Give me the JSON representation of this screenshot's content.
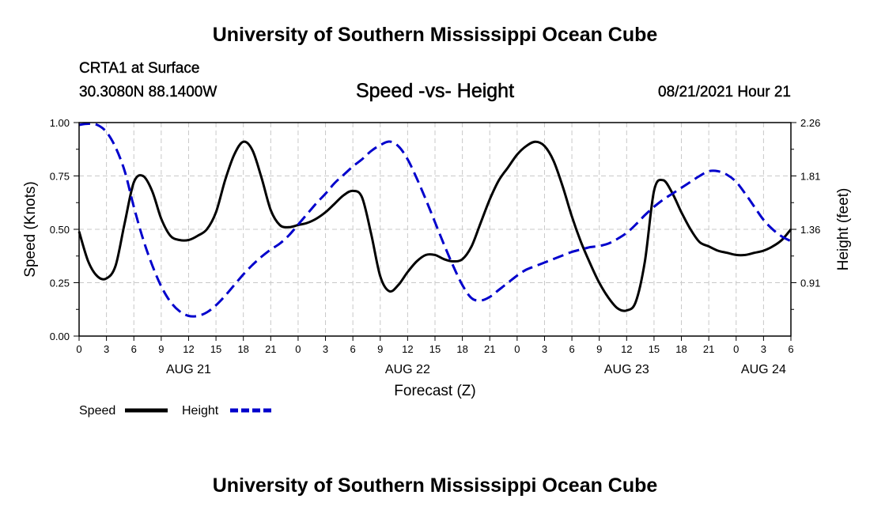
{
  "header": {
    "title": "University of Southern Mississippi Ocean Cube",
    "station": "CRTA1 at Surface",
    "coordinates": "30.3080N  88.1400W",
    "subtitle": "Speed -vs- Height",
    "datetime": "08/21/2021 Hour 21"
  },
  "footer": {
    "title": "University of Southern Mississippi Ocean Cube"
  },
  "colors": {
    "speed": "#000000",
    "height": "#0000cc",
    "grid": "#c8c8c8"
  },
  "chart_data": {
    "type": "line",
    "title": "Speed -vs- Height",
    "xlabel": "Forecast (Z)",
    "ylabel": "Speed (Knots)",
    "y2label": "Height (feet)",
    "x_unit": "hours from AUG 21 00Z",
    "xlim": [
      0,
      78
    ],
    "ylim": [
      0,
      1.0
    ],
    "y2lim": [
      0.46,
      2.26
    ],
    "x_ticks": [
      0,
      3,
      6,
      9,
      12,
      15,
      18,
      21,
      24,
      27,
      30,
      33,
      36,
      39,
      42,
      45,
      48,
      51,
      54,
      57,
      60,
      63,
      66,
      69,
      72,
      75,
      78
    ],
    "x_tick_labels": [
      "0",
      "3",
      "6",
      "9",
      "12",
      "15",
      "18",
      "21",
      "0",
      "3",
      "6",
      "9",
      "12",
      "15",
      "18",
      "21",
      "0",
      "3",
      "6",
      "9",
      "12",
      "15",
      "18",
      "21",
      "0",
      "3",
      "6"
    ],
    "y_ticks": [
      0.0,
      0.25,
      0.5,
      0.75,
      1.0
    ],
    "y_tick_labels": [
      "0.00",
      "0.25",
      "0.50",
      "0.75",
      "1.00"
    ],
    "y2_ticks": [
      0.91,
      1.36,
      1.81,
      2.26
    ],
    "y2_tick_labels": [
      "0.91",
      "1.36",
      "1.81",
      "2.26"
    ],
    "date_labels": [
      {
        "x": 12,
        "text": "AUG 21"
      },
      {
        "x": 36,
        "text": "AUG 22"
      },
      {
        "x": 60,
        "text": "AUG 23"
      },
      {
        "x": 75,
        "text": "AUG 24"
      }
    ],
    "grid": true,
    "legend": [
      {
        "name": "Speed",
        "style": "solid"
      },
      {
        "name": "Height",
        "style": "dashed"
      }
    ],
    "series": [
      {
        "name": "Speed",
        "axis": "left",
        "x": [
          0,
          1,
          2,
          3,
          4,
          5,
          6,
          7,
          8,
          9,
          10,
          11,
          12,
          13,
          14,
          15,
          16,
          17,
          18,
          19,
          20,
          21,
          22,
          23,
          24,
          25,
          26,
          27,
          28,
          29,
          30,
          31,
          32,
          33,
          34,
          35,
          36,
          37,
          38,
          39,
          40,
          41,
          42,
          43,
          44,
          45,
          46,
          47,
          48,
          49,
          50,
          51,
          52,
          53,
          54,
          55,
          56,
          57,
          58,
          59,
          60,
          61,
          62,
          63,
          64,
          65,
          66,
          67,
          68,
          69,
          70,
          71,
          72,
          73,
          74,
          75,
          76,
          77,
          78
        ],
        "values": [
          0.49,
          0.35,
          0.28,
          0.27,
          0.33,
          0.53,
          0.72,
          0.75,
          0.68,
          0.55,
          0.47,
          0.45,
          0.45,
          0.47,
          0.5,
          0.58,
          0.73,
          0.85,
          0.91,
          0.87,
          0.74,
          0.59,
          0.52,
          0.51,
          0.52,
          0.53,
          0.55,
          0.58,
          0.62,
          0.66,
          0.68,
          0.65,
          0.48,
          0.28,
          0.21,
          0.24,
          0.3,
          0.35,
          0.38,
          0.38,
          0.36,
          0.35,
          0.36,
          0.42,
          0.53,
          0.64,
          0.73,
          0.79,
          0.85,
          0.89,
          0.91,
          0.89,
          0.82,
          0.7,
          0.56,
          0.44,
          0.34,
          0.25,
          0.18,
          0.13,
          0.12,
          0.16,
          0.35,
          0.68,
          0.73,
          0.67,
          0.58,
          0.5,
          0.44,
          0.42,
          0.4,
          0.39,
          0.38,
          0.38,
          0.39,
          0.4,
          0.42,
          0.45,
          0.5
        ]
      },
      {
        "name": "Height",
        "axis": "right",
        "x": [
          0,
          1,
          2,
          3,
          4,
          5,
          6,
          7,
          8,
          9,
          10,
          11,
          12,
          13,
          14,
          15,
          16,
          17,
          18,
          19,
          20,
          21,
          22,
          23,
          24,
          25,
          26,
          27,
          28,
          29,
          30,
          31,
          32,
          33,
          34,
          35,
          36,
          37,
          38,
          39,
          40,
          41,
          42,
          43,
          44,
          45,
          46,
          47,
          48,
          49,
          50,
          51,
          52,
          53,
          54,
          55,
          56,
          57,
          58,
          59,
          60,
          61,
          62,
          63,
          64,
          65,
          66,
          67,
          68,
          69,
          70,
          71,
          72,
          73,
          74,
          75,
          76,
          77,
          78
        ],
        "values": [
          2.24,
          2.25,
          2.24,
          2.18,
          2.05,
          1.85,
          1.55,
          1.28,
          1.06,
          0.88,
          0.75,
          0.67,
          0.63,
          0.63,
          0.66,
          0.72,
          0.8,
          0.89,
          0.98,
          1.06,
          1.13,
          1.19,
          1.24,
          1.31,
          1.4,
          1.49,
          1.58,
          1.66,
          1.75,
          1.82,
          1.89,
          1.95,
          2.02,
          2.07,
          2.1,
          2.06,
          1.95,
          1.79,
          1.61,
          1.42,
          1.23,
          1.05,
          0.89,
          0.78,
          0.76,
          0.79,
          0.85,
          0.91,
          0.97,
          1.02,
          1.05,
          1.08,
          1.11,
          1.14,
          1.17,
          1.19,
          1.21,
          1.22,
          1.24,
          1.28,
          1.33,
          1.4,
          1.48,
          1.55,
          1.61,
          1.66,
          1.71,
          1.76,
          1.81,
          1.85,
          1.85,
          1.82,
          1.76,
          1.66,
          1.55,
          1.44,
          1.36,
          1.3,
          1.26
        ]
      }
    ]
  }
}
